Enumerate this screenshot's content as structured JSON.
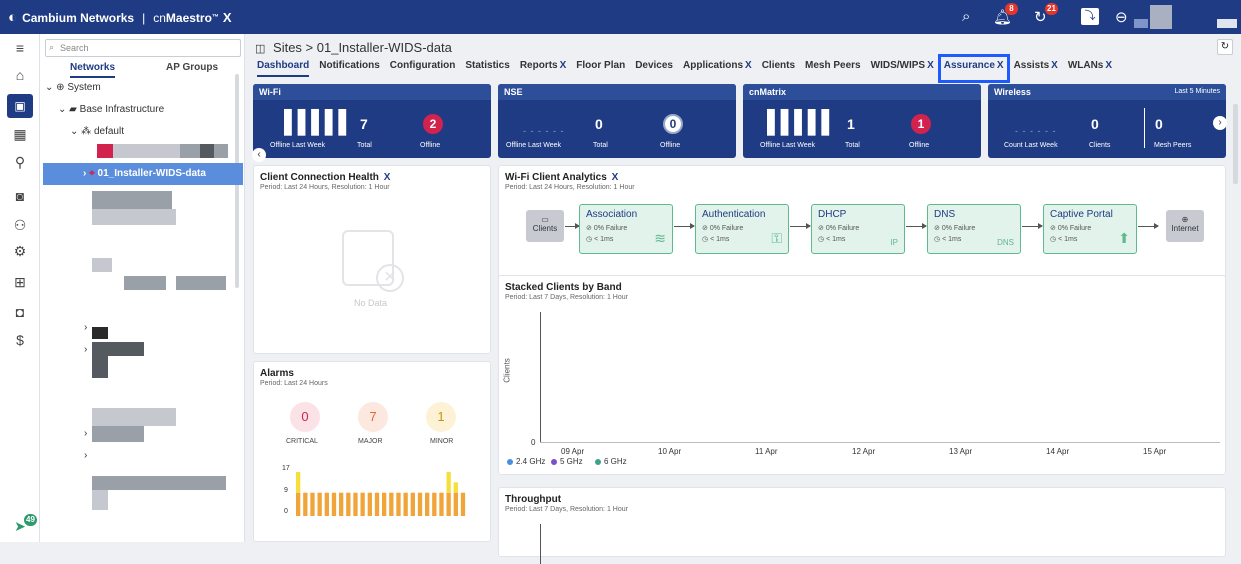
{
  "topbar": {
    "brand": "Cambium Networks",
    "separator": "|",
    "product_prefix": "cn",
    "product": "Maestro",
    "product_tm": "™",
    "product_x": "X",
    "notif_count": "8",
    "sync_count": "21"
  },
  "leftnav": {
    "footer_count": "49"
  },
  "tree": {
    "search_placeholder": "Search",
    "tabs": [
      "Networks",
      "AP Groups"
    ],
    "system": "System",
    "base": "Base Infrastructure",
    "default": "default",
    "selected": "01_Installer-WIDS-data"
  },
  "main": {
    "breadcrumb": "Sites > 01_Installer-WIDS-data",
    "tabs": [
      {
        "label": "Dashboard",
        "x": false
      },
      {
        "label": "Notifications",
        "x": false
      },
      {
        "label": "Configuration",
        "x": false
      },
      {
        "label": "Statistics",
        "x": false
      },
      {
        "label": "Reports",
        "x": true
      },
      {
        "label": "Floor Plan",
        "x": false
      },
      {
        "label": "Devices",
        "x": false
      },
      {
        "label": "Applications",
        "x": true
      },
      {
        "label": "Clients",
        "x": false
      },
      {
        "label": "Mesh Peers",
        "x": false
      },
      {
        "label": "WIDS/WIPS",
        "x": true
      },
      {
        "label": "Assurance",
        "x": true
      },
      {
        "label": "Assists",
        "x": true
      },
      {
        "label": "WLANs",
        "x": true
      }
    ],
    "x_mark": "X"
  },
  "stats": {
    "wifi": {
      "title": "Wi-Fi",
      "total": "7",
      "offline": "2",
      "l1": "Offline Last Week",
      "l2": "Total",
      "l3": "Offline"
    },
    "nse": {
      "title": "NSE",
      "total": "0",
      "offline": "0",
      "l1": "Offline Last Week",
      "l2": "Total",
      "l3": "Offline"
    },
    "cnmatrix": {
      "title": "cnMatrix",
      "total": "1",
      "offline": "1",
      "l1": "Offline Last Week",
      "l2": "Total",
      "l3": "Offline"
    },
    "wireless": {
      "title": "Wireless",
      "range": "Last 5 Minutes",
      "clients": "0",
      "mesh": "0",
      "l1": "Count Last Week",
      "l2": "Clients",
      "l3": "Mesh Peers"
    }
  },
  "health": {
    "title": "Client Connection Health",
    "period": "Period: Last 24 Hours, Resolution: 1 Hour",
    "empty": "No Data"
  },
  "analytics": {
    "title": "Wi-Fi Client Analytics",
    "period": "Period: Last 24 Hours, Resolution: 1 Hour",
    "start": "Clients",
    "end": "Internet",
    "steps": [
      {
        "name": "Association",
        "failure": "0% Failure",
        "time": "< 1ms"
      },
      {
        "name": "Authentication",
        "failure": "0% Failure",
        "time": "< 1ms"
      },
      {
        "name": "DHCP",
        "failure": "0% Failure",
        "time": "< 1ms"
      },
      {
        "name": "DNS",
        "failure": "0% Failure",
        "time": "< 1ms"
      },
      {
        "name": "Captive Portal",
        "failure": "0% Failure",
        "time": "< 1ms"
      }
    ]
  },
  "stacked": {
    "title": "Stacked Clients by Band",
    "period": "Period: Last 7 Days, Resolution: 1 Hour",
    "ylabel": "Clients",
    "y0": "0",
    "xlabels": [
      "09 Apr",
      "10 Apr",
      "11 Apr",
      "12 Apr",
      "13 Apr",
      "14 Apr",
      "15 Apr"
    ],
    "legend": [
      {
        "name": "2.4 GHz",
        "color": "#4a90e2"
      },
      {
        "name": "5 GHz",
        "color": "#7b4fc9"
      },
      {
        "name": "6 GHz",
        "color": "#3fa38c"
      }
    ]
  },
  "alarms": {
    "title": "Alarms",
    "period": "Period: Last 24 Hours",
    "critical": "0",
    "major": "7",
    "minor": "1",
    "critical_label": "CRITICAL",
    "major_label": "MAJOR",
    "minor_label": "MINOR",
    "yticks": [
      "17",
      "9",
      "0"
    ]
  },
  "throughput": {
    "title": "Throughput",
    "period": "Period: Last 7 Days, Resolution: 1 Hour"
  },
  "chart_data": {
    "type": "bar",
    "title": "",
    "ylim": [
      0,
      17
    ],
    "series": [
      {
        "name": "",
        "color": "#f0a43a",
        "values": [
          9,
          9,
          9,
          9,
          9,
          9,
          9,
          9,
          9,
          9,
          9,
          9,
          9,
          9,
          9,
          9,
          9,
          9,
          9,
          9,
          9,
          9,
          9,
          9
        ]
      },
      {
        "name": "",
        "color": "#f4e03c",
        "values": [
          8,
          0,
          0,
          0,
          0,
          0,
          0,
          0,
          0,
          0,
          0,
          0,
          0,
          0,
          0,
          0,
          0,
          0,
          0,
          0,
          0,
          8,
          4,
          0
        ]
      }
    ]
  }
}
